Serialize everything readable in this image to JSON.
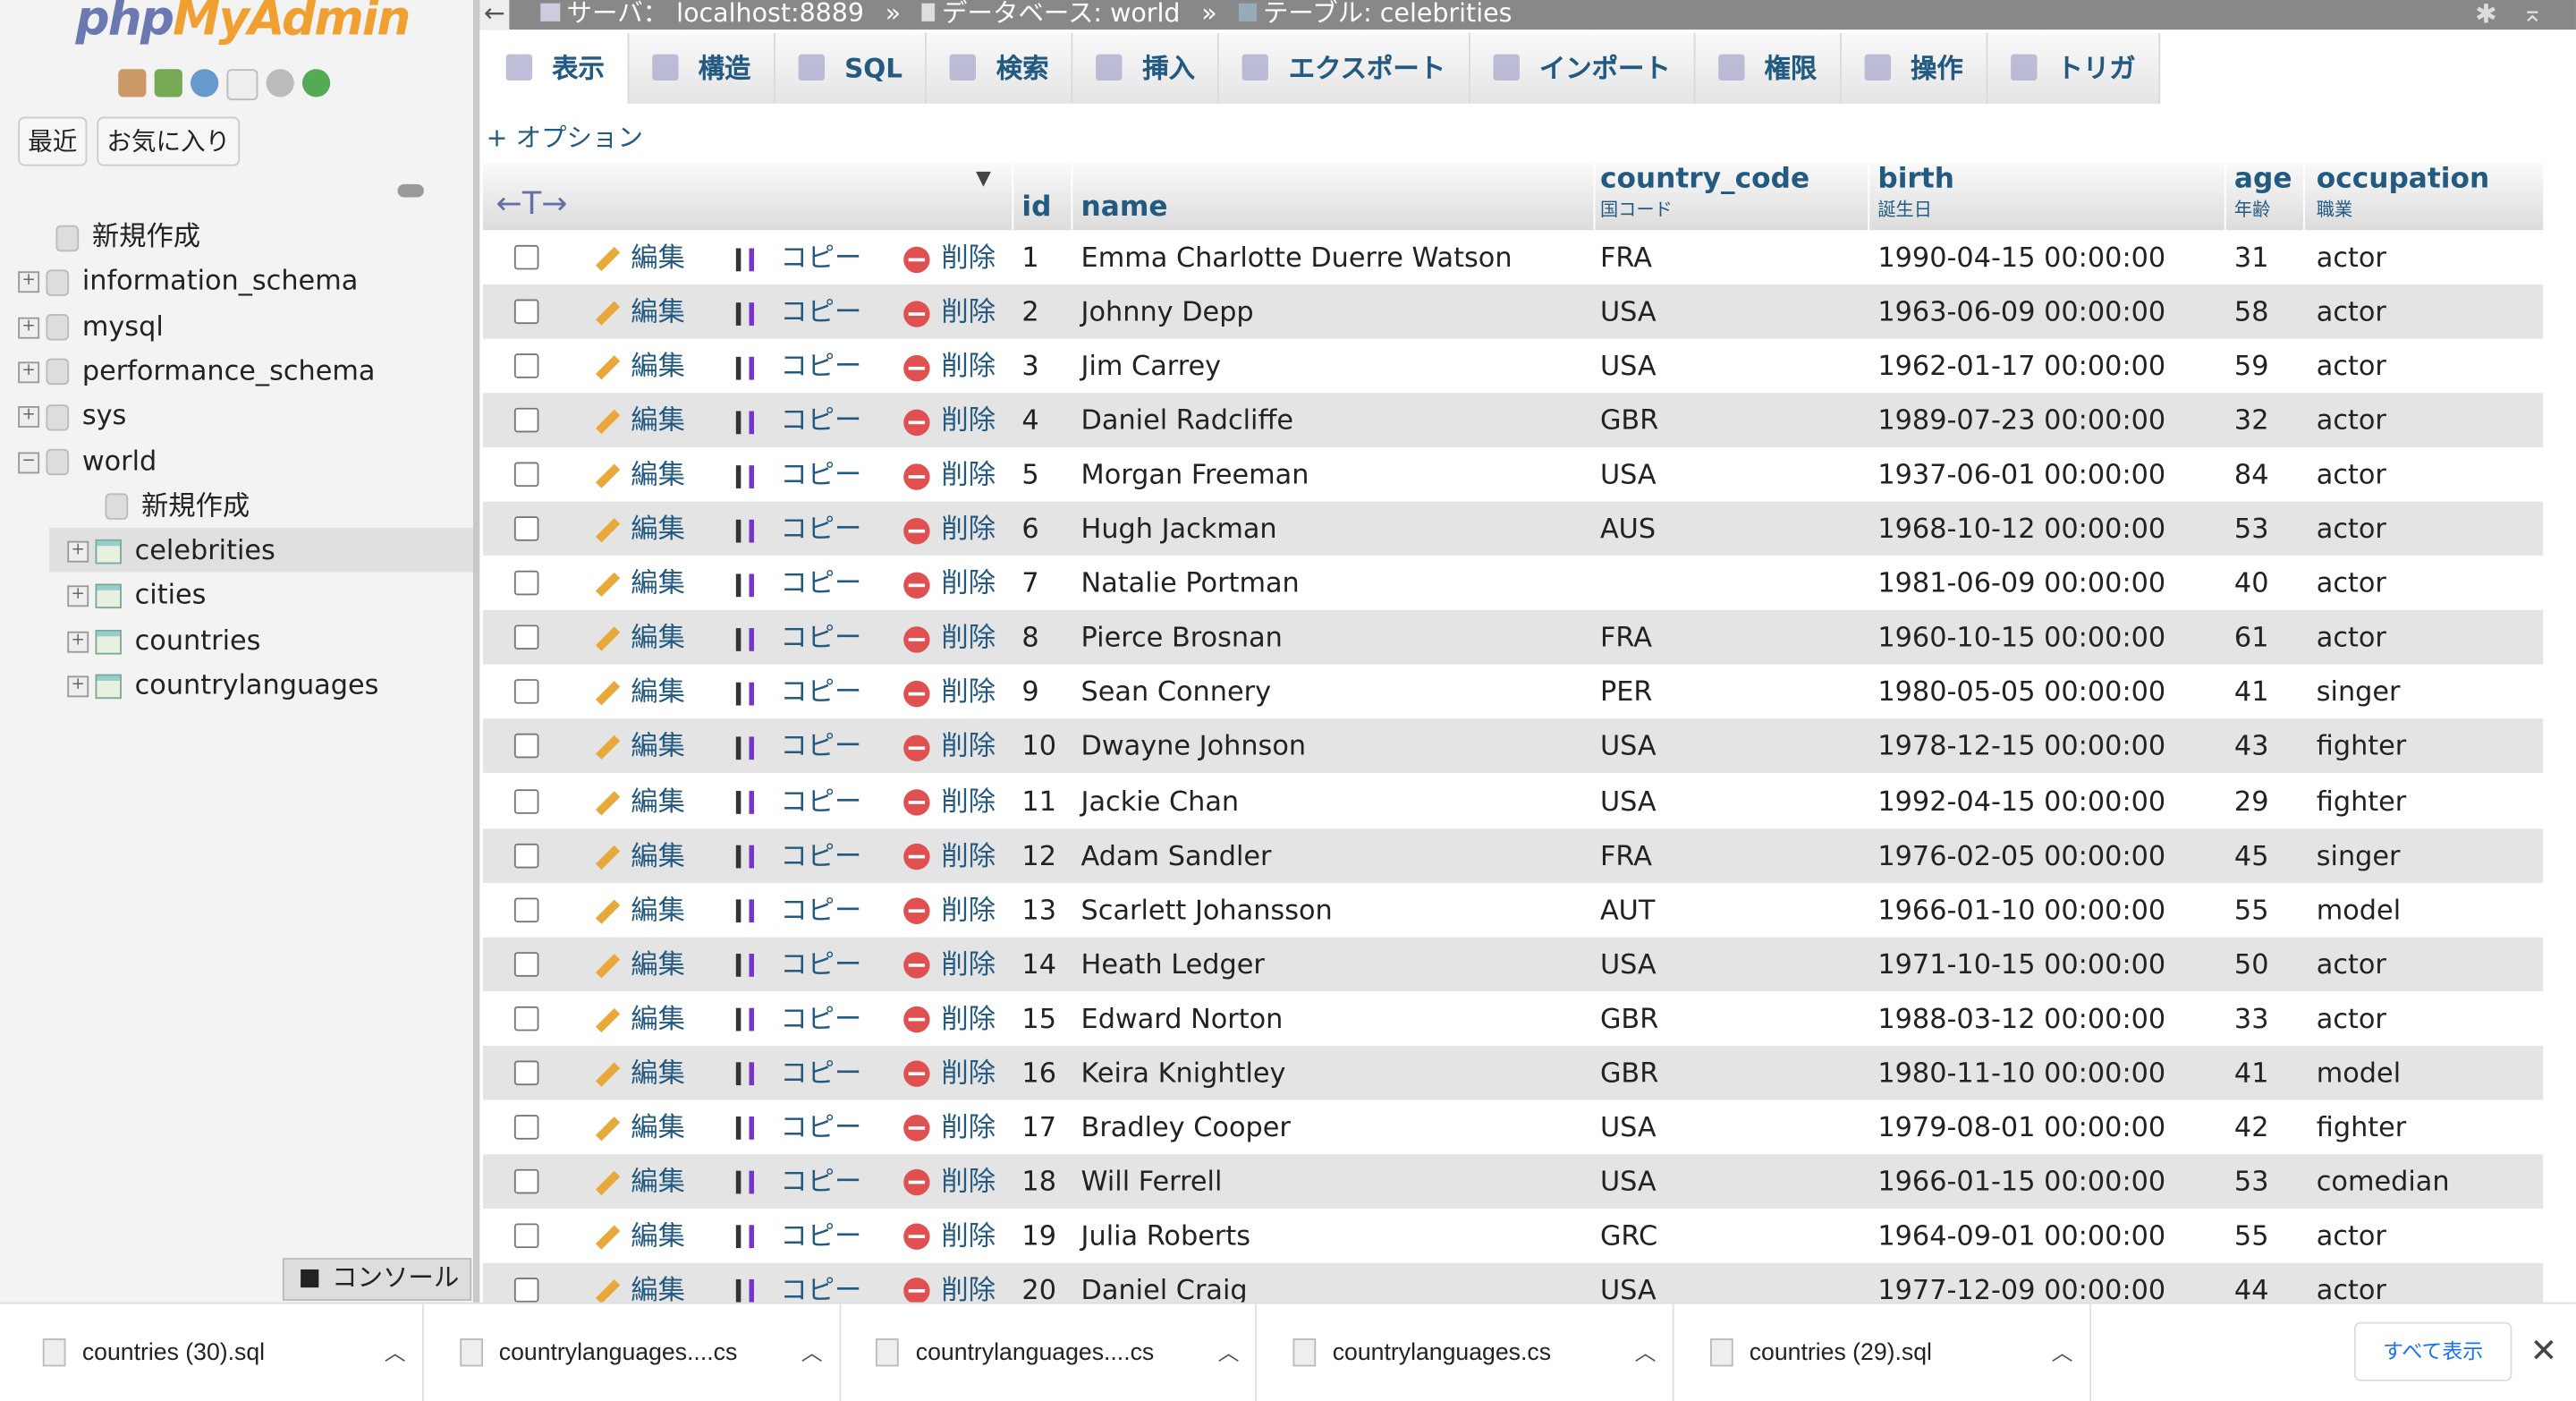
{
  "sidebar": {
    "logo_a": "php",
    "logo_b": "MyAdmin",
    "recent": "最近",
    "favorites": "お気に入り",
    "tree": [
      {
        "label": "新規作成",
        "level": 0,
        "kind": "new"
      },
      {
        "label": "information_schema",
        "level": 0,
        "kind": "db"
      },
      {
        "label": "mysql",
        "level": 0,
        "kind": "db"
      },
      {
        "label": "performance_schema",
        "level": 0,
        "kind": "db"
      },
      {
        "label": "sys",
        "level": 0,
        "kind": "db"
      },
      {
        "label": "world",
        "level": 0,
        "kind": "db",
        "expanded": true
      },
      {
        "label": "新規作成",
        "level": 1,
        "kind": "new"
      },
      {
        "label": "celebrities",
        "level": 1,
        "kind": "table",
        "selected": true
      },
      {
        "label": "cities",
        "level": 1,
        "kind": "table"
      },
      {
        "label": "countries",
        "level": 1,
        "kind": "table"
      },
      {
        "label": "countrylanguages",
        "level": 1,
        "kind": "table"
      }
    ]
  },
  "breadcrumb": {
    "back": "←",
    "server": "サーバ： localhost:8889",
    "sep": "»",
    "database": "データベース: world",
    "table": "テーブル: celebrities"
  },
  "tabs": [
    {
      "label": "表示",
      "icon": "browse-icon"
    },
    {
      "label": "構造",
      "icon": "structure-icon"
    },
    {
      "label": "SQL",
      "icon": "sql-icon"
    },
    {
      "label": "検索",
      "icon": "search-icon"
    },
    {
      "label": "挿入",
      "icon": "insert-icon"
    },
    {
      "label": "エクスポート",
      "icon": "export-icon"
    },
    {
      "label": "インポート",
      "icon": "import-icon"
    },
    {
      "label": "権限",
      "icon": "privileges-icon"
    },
    {
      "label": "操作",
      "icon": "operations-icon"
    },
    {
      "label": "トリガ",
      "icon": "triggers-icon"
    }
  ],
  "options": "+ オプション",
  "table": {
    "arrows": "←T→",
    "columns": [
      {
        "name": "id"
      },
      {
        "name": "name"
      },
      {
        "name": "country_code",
        "comment": "国コード"
      },
      {
        "name": "birth",
        "comment": "誕生日"
      },
      {
        "name": "age",
        "comment": "年齢"
      },
      {
        "name": "occupation",
        "comment": "職業"
      }
    ],
    "actions": {
      "edit": "編集",
      "copy": "コピー",
      "delete": "削除"
    },
    "rows": [
      [
        "1",
        "Emma Charlotte Duerre Watson",
        "FRA",
        "1990-04-15 00:00:00",
        "31",
        "actor"
      ],
      [
        "2",
        "Johnny Depp",
        "USA",
        "1963-06-09 00:00:00",
        "58",
        "actor"
      ],
      [
        "3",
        "Jim Carrey",
        "USA",
        "1962-01-17 00:00:00",
        "59",
        "actor"
      ],
      [
        "4",
        "Daniel Radcliffe",
        "GBR",
        "1989-07-23 00:00:00",
        "32",
        "actor"
      ],
      [
        "5",
        "Morgan Freeman",
        "USA",
        "1937-06-01 00:00:00",
        "84",
        "actor"
      ],
      [
        "6",
        "Hugh Jackman",
        "AUS",
        "1968-10-12 00:00:00",
        "53",
        "actor"
      ],
      [
        "7",
        "Natalie Portman",
        "",
        "1981-06-09 00:00:00",
        "40",
        "actor"
      ],
      [
        "8",
        "Pierce Brosnan",
        "FRA",
        "1960-10-15 00:00:00",
        "61",
        "actor"
      ],
      [
        "9",
        "Sean Connery",
        "PER",
        "1980-05-05 00:00:00",
        "41",
        "singer"
      ],
      [
        "10",
        "Dwayne Johnson",
        "USA",
        "1978-12-15 00:00:00",
        "43",
        "fighter"
      ],
      [
        "11",
        "Jackie Chan",
        "USA",
        "1992-04-15 00:00:00",
        "29",
        "fighter"
      ],
      [
        "12",
        "Adam Sandler",
        "FRA",
        "1976-02-05 00:00:00",
        "45",
        "singer"
      ],
      [
        "13",
        "Scarlett Johansson",
        "AUT",
        "1966-01-10 00:00:00",
        "55",
        "model"
      ],
      [
        "14",
        "Heath Ledger",
        "USA",
        "1971-10-15 00:00:00",
        "50",
        "actor"
      ],
      [
        "15",
        "Edward Norton",
        "GBR",
        "1988-03-12 00:00:00",
        "33",
        "actor"
      ],
      [
        "16",
        "Keira Knightley",
        "GBR",
        "1980-11-10 00:00:00",
        "41",
        "model"
      ],
      [
        "17",
        "Bradley Cooper",
        "USA",
        "1979-08-01 00:00:00",
        "42",
        "fighter"
      ],
      [
        "18",
        "Will Ferrell",
        "USA",
        "1966-01-15 00:00:00",
        "53",
        "comedian"
      ],
      [
        "19",
        "Julia Roberts",
        "GRC",
        "1964-09-01 00:00:00",
        "55",
        "actor"
      ],
      [
        "20",
        "Daniel Craig",
        "USA",
        "1977-12-09 00:00:00",
        "44",
        "actor"
      ]
    ]
  },
  "console": "コンソール",
  "downloads": {
    "items": [
      "countries (30).sql",
      "countrylanguages....cs",
      "countrylanguages....cs",
      "countrylanguages.cs",
      "countries (29).sql"
    ],
    "show_all": "すべて表示",
    "close": "✕"
  }
}
